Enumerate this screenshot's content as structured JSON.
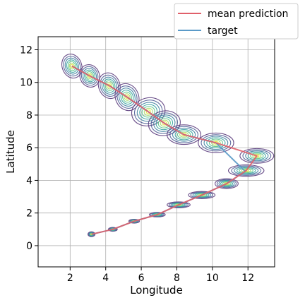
{
  "chart_data": {
    "type": "line",
    "xlabel": "Longitude",
    "ylabel": "Latitude",
    "xlim": [
      0.2,
      13.5
    ],
    "ylim": [
      -1.3,
      12.8
    ],
    "xticks": [
      2,
      4,
      6,
      8,
      10,
      12
    ],
    "yticks": [
      0,
      2,
      4,
      6,
      8,
      10,
      12
    ],
    "grid": true,
    "legend_position": "top-right, outside axes",
    "series": [
      {
        "name": "mean prediction",
        "color": "#e0606a",
        "x": [
          2.1,
          3.1,
          4.2,
          5.2,
          6.4,
          7.3,
          8.4,
          10.2,
          12.5,
          11.9,
          10.8,
          9.4,
          8.1,
          6.9,
          5.6,
          4.4,
          3.2
        ],
        "y": [
          11.0,
          10.4,
          9.8,
          9.1,
          8.2,
          7.5,
          6.8,
          6.3,
          5.5,
          4.6,
          3.8,
          3.1,
          2.5,
          1.9,
          1.5,
          1.0,
          0.7
        ]
      },
      {
        "name": "target",
        "color": "#5b9ac8",
        "x": [
          2.1,
          3.1,
          4.2,
          5.2,
          6.4,
          7.3,
          8.4,
          10.2,
          11.8,
          11.9,
          10.8,
          9.4,
          8.1,
          6.9,
          5.6,
          4.4,
          3.2
        ],
        "y": [
          11.0,
          10.4,
          9.8,
          9.1,
          8.2,
          7.5,
          6.8,
          6.3,
          4.6,
          4.6,
          3.8,
          3.1,
          2.5,
          1.9,
          1.5,
          1.0,
          0.7
        ]
      }
    ],
    "uncertainty_ellipses": [
      {
        "x": 2.1,
        "y": 11.0,
        "sx": 0.55,
        "sy": 0.75,
        "rot": -20
      },
      {
        "x": 3.1,
        "y": 10.4,
        "sx": 0.55,
        "sy": 0.7,
        "rot": -20
      },
      {
        "x": 4.2,
        "y": 9.8,
        "sx": 0.6,
        "sy": 0.8,
        "rot": -20
      },
      {
        "x": 5.2,
        "y": 9.1,
        "sx": 0.65,
        "sy": 0.85,
        "rot": -25
      },
      {
        "x": 6.4,
        "y": 8.2,
        "sx": 0.95,
        "sy": 0.85,
        "rot": -15
      },
      {
        "x": 7.3,
        "y": 7.5,
        "sx": 0.9,
        "sy": 0.75,
        "rot": -10
      },
      {
        "x": 8.4,
        "y": 6.8,
        "sx": 0.95,
        "sy": 0.6,
        "rot": 0
      },
      {
        "x": 10.2,
        "y": 6.3,
        "sx": 1.0,
        "sy": 0.6,
        "rot": 0
      },
      {
        "x": 12.5,
        "y": 5.5,
        "sx": 0.95,
        "sy": 0.45,
        "rot": 0
      },
      {
        "x": 11.9,
        "y": 4.6,
        "sx": 1.0,
        "sy": 0.35,
        "rot": 0
      },
      {
        "x": 10.8,
        "y": 3.8,
        "sx": 0.65,
        "sy": 0.3,
        "rot": 0
      },
      {
        "x": 9.4,
        "y": 3.1,
        "sx": 0.75,
        "sy": 0.22,
        "rot": 0
      },
      {
        "x": 8.1,
        "y": 2.5,
        "sx": 0.65,
        "sy": 0.18,
        "rot": 0
      },
      {
        "x": 6.9,
        "y": 1.9,
        "sx": 0.45,
        "sy": 0.14,
        "rot": 0
      },
      {
        "x": 5.6,
        "y": 1.5,
        "sx": 0.3,
        "sy": 0.12,
        "rot": 0
      },
      {
        "x": 4.4,
        "y": 1.0,
        "sx": 0.25,
        "sy": 0.12,
        "rot": 0
      },
      {
        "x": 3.2,
        "y": 0.7,
        "sx": 0.2,
        "sy": 0.15,
        "rot": 0
      }
    ],
    "contour_colors": [
      "#5a3b7c",
      "#4f5d96",
      "#3e7fa0",
      "#35a3a0",
      "#5cc58a",
      "#a8dc6c",
      "#e8e83a"
    ]
  }
}
